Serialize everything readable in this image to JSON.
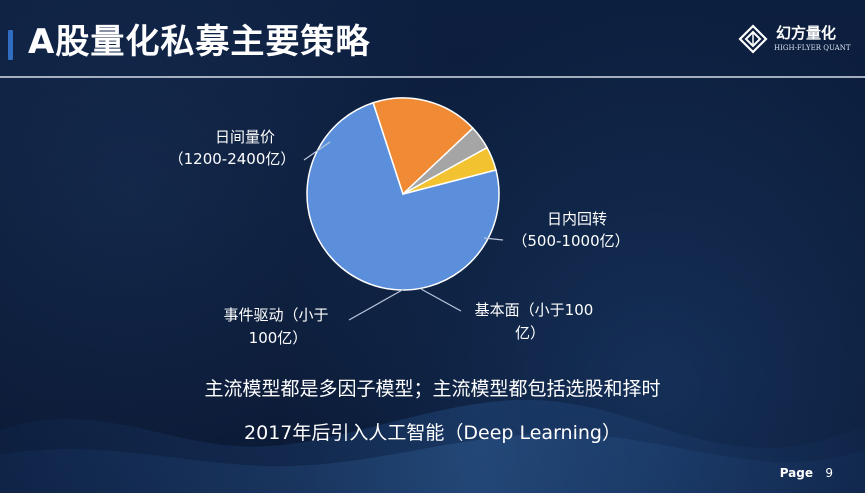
{
  "slide": {
    "title": "A股量化私募主要策略",
    "logo": {
      "cn": "幻方量化",
      "en": "HIGH-FLYER QUANT"
    },
    "lines": [
      "主流模型都是多因子模型；主流模型都包括选股和择时",
      "2017年后引入人工智能（Deep Learning）"
    ],
    "footer": {
      "page_label": "Page",
      "page_number": "9"
    }
  },
  "colors": {
    "background": "#0b1d3a",
    "accent": "#2f6dc0",
    "slice_blue": "#5b8fdb",
    "slice_orange": "#f08a35",
    "slice_gray": "#a5a5a5",
    "slice_yellow": "#f2c230",
    "text": "#ffffff"
  },
  "chart_data": {
    "type": "pie",
    "values": [
      74,
      18,
      4,
      4
    ],
    "label_lines": [
      [
        "日间量价",
        "（1200-2400亿）"
      ],
      [
        "日内回转",
        "（500-1000亿）"
      ],
      [
        "基本面（小于100",
        "亿）"
      ],
      [
        "事件驱动（小于",
        "100亿）"
      ]
    ]
  }
}
